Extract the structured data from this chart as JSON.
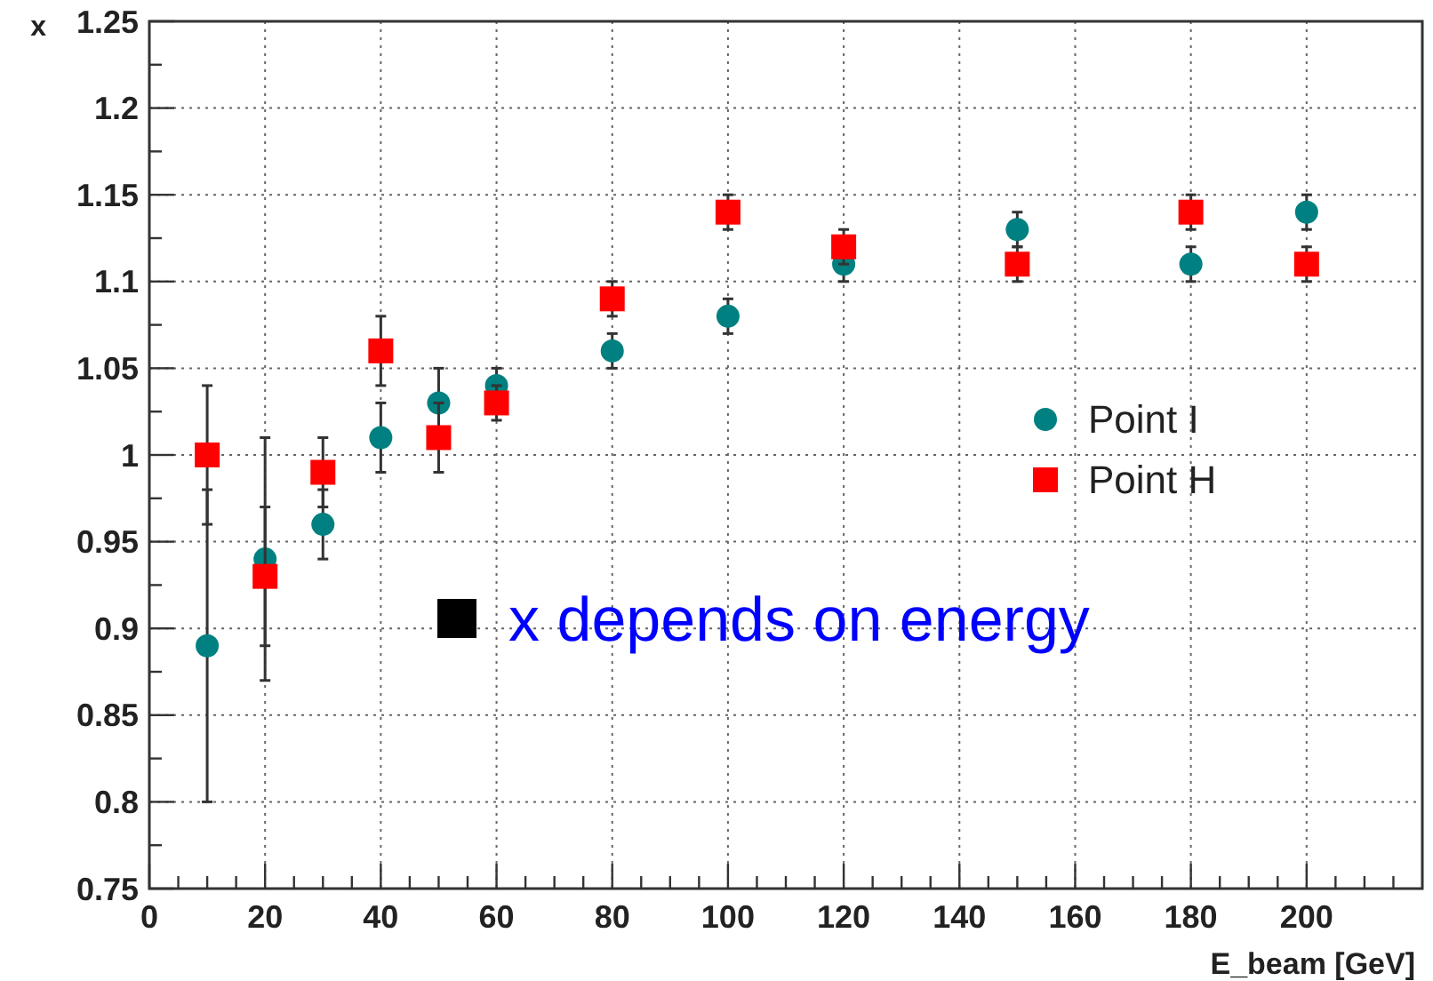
{
  "chart_data": {
    "type": "scatter",
    "x": [
      10,
      20,
      30,
      40,
      50,
      60,
      80,
      100,
      120,
      150,
      180,
      200
    ],
    "series": [
      {
        "name": "Point I",
        "color": "#008080",
        "marker": "circle",
        "values": [
          0.89,
          0.94,
          0.96,
          1.01,
          1.03,
          1.04,
          1.06,
          1.08,
          1.11,
          1.13,
          1.11,
          1.14
        ],
        "errors": [
          0.09,
          0.07,
          0.02,
          0.02,
          0.02,
          0.01,
          0.01,
          0.01,
          0.01,
          0.01,
          0.01,
          0.01
        ]
      },
      {
        "name": "Point H",
        "color": "#ff0000",
        "marker": "square",
        "values": [
          1.0,
          0.93,
          0.99,
          1.06,
          1.01,
          1.03,
          1.09,
          1.14,
          1.12,
          1.11,
          1.14,
          1.11
        ],
        "errors": [
          0.04,
          0.04,
          0.02,
          0.02,
          0.02,
          0.01,
          0.01,
          0.01,
          0.01,
          0.01,
          0.01,
          0.01
        ]
      }
    ],
    "xlabel": "E_beam [GeV]",
    "ylabel": "x",
    "annotations": [
      "x depends on energy"
    ],
    "xlim": [
      0,
      220
    ],
    "xticks": [
      0,
      {
        "value": 5,
        "label": null
      },
      {
        "value": 10,
        "label": null
      },
      {
        "value": 15,
        "label": null
      },
      20,
      {
        "value": 25,
        "label": null
      },
      {
        "value": 30,
        "label": null
      },
      {
        "value": 35,
        "label": null
      },
      40,
      {
        "value": 45,
        "label": null
      },
      {
        "value": 50,
        "label": null
      },
      {
        "value": 55,
        "label": null
      },
      60,
      {
        "value": 65,
        "label": null
      },
      {
        "value": 70,
        "label": null
      },
      {
        "value": 75,
        "label": null
      },
      80,
      {
        "value": 85,
        "label": null
      },
      {
        "value": 90,
        "label": null
      },
      {
        "value": 95,
        "label": null
      },
      100,
      {
        "value": 105,
        "label": null
      },
      {
        "value": 110,
        "label": null
      },
      {
        "value": 115,
        "label": null
      },
      120,
      {
        "value": 125,
        "label": null
      },
      {
        "value": 130,
        "label": null
      },
      {
        "value": 135,
        "label": null
      },
      140,
      {
        "value": 145,
        "label": null
      },
      {
        "value": 150,
        "label": null
      },
      {
        "value": 155,
        "label": null
      },
      160,
      {
        "value": 165,
        "label": null
      },
      {
        "value": 170,
        "label": null
      },
      {
        "value": 175,
        "label": null
      },
      180,
      {
        "value": 185,
        "label": null
      },
      {
        "value": 190,
        "label": null
      },
      {
        "value": 195,
        "label": null
      },
      200,
      {
        "value": 205,
        "label": null
      },
      {
        "value": 210,
        "label": null
      },
      {
        "value": 215,
        "label": null
      }
    ],
    "ylim": [
      0.75,
      1.25
    ],
    "yticks": [
      0.75,
      {
        "value": 0.775,
        "label": null
      },
      0.8,
      {
        "value": 0.825,
        "label": null
      },
      0.85,
      {
        "value": 0.875,
        "label": null
      },
      0.9,
      {
        "value": 0.925,
        "label": null
      },
      0.95,
      {
        "value": 0.975,
        "label": null
      },
      1,
      {
        "value": 1.025,
        "label": null
      },
      1.05,
      {
        "value": 1.075,
        "label": null
      },
      1.1,
      {
        "value": 1.125,
        "label": null
      },
      1.15,
      {
        "value": 1.175,
        "label": null
      },
      1.2,
      {
        "value": 1.225,
        "label": null
      },
      1.25
    ],
    "grid": true,
    "legend": "right"
  }
}
